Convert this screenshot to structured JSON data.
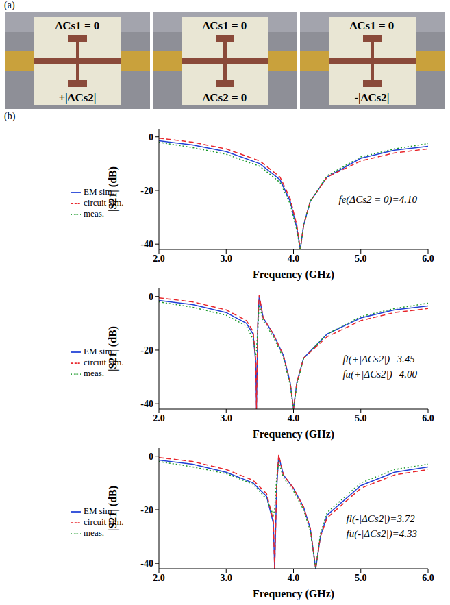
{
  "panel_labels": [
    "(a)",
    "(b)"
  ],
  "photos": [
    {
      "top": "ΔCs1 = 0",
      "bottom": "+|ΔCs2|"
    },
    {
      "top": "ΔCs1 = 0",
      "bottom": "ΔCs2 = 0"
    },
    {
      "top": "ΔCs1 = 0",
      "bottom": "-|ΔCs2|"
    }
  ],
  "chart_data": [
    {
      "type": "line",
      "x_label": "Frequency (GHz)",
      "y_label": "|S21| (dB)",
      "xlim": [
        2,
        6
      ],
      "xticks": [
        {
          "value": 2,
          "label": "2.0"
        },
        {
          "value": 3,
          "label": "3.0"
        },
        {
          "value": 4,
          "label": "4.0"
        },
        {
          "value": 5,
          "label": "5.0"
        },
        {
          "value": 6,
          "label": "6.0"
        }
      ],
      "ylim": [
        -42,
        3
      ],
      "yticks": [
        0,
        -20,
        -40
      ],
      "legend": "left",
      "grid": false,
      "annotations": [
        "fe(ΔCs2 = 0)=4.10"
      ],
      "x": [
        2.0,
        2.5,
        3.0,
        3.5,
        3.8,
        3.95,
        4.05,
        4.1,
        4.15,
        4.25,
        4.5,
        5.0,
        5.5,
        6.0
      ],
      "series": [
        {
          "name": "EM sim.",
          "color": "#1f3fd6",
          "line_style": "solid",
          "values": [
            -1.5,
            -3,
            -5.5,
            -10,
            -16,
            -24,
            -34,
            -42,
            -33,
            -24,
            -15,
            -8,
            -5,
            -3.5
          ]
        },
        {
          "name": "circuit sim.",
          "color": "#e8262b",
          "line_style": "dashed",
          "values": [
            -0.5,
            -2,
            -4.5,
            -9,
            -15,
            -23,
            -33,
            -42,
            -33,
            -24,
            -15,
            -9,
            -6,
            -4.5
          ]
        },
        {
          "name": "meas.",
          "color": "#1a9a2a",
          "line_style": "dotted",
          "values": [
            -2,
            -4,
            -6.5,
            -11,
            -17,
            -25,
            -35,
            -42,
            -33,
            -24,
            -14.5,
            -7.5,
            -4.5,
            -2.5
          ]
        }
      ]
    },
    {
      "type": "line",
      "x_label": "Frequency (GHz)",
      "y_label": "|S21| (dB)",
      "xlim": [
        2,
        6
      ],
      "xticks": [
        {
          "value": 2,
          "label": "2.0"
        },
        {
          "value": 3,
          "label": "3.0"
        },
        {
          "value": 4,
          "label": "4.0"
        },
        {
          "value": 5,
          "label": "5.0"
        },
        {
          "value": 6,
          "label": "6.0"
        }
      ],
      "ylim": [
        -42,
        3
      ],
      "yticks": [
        0,
        -20,
        -40
      ],
      "legend": "left",
      "grid": false,
      "annotations": [
        "fl(+|ΔCs2|)=3.45",
        "fu(+|ΔCs2|)=4.00"
      ],
      "x": [
        2.0,
        2.5,
        3.0,
        3.3,
        3.4,
        3.44,
        3.45,
        3.47,
        3.49,
        3.55,
        3.7,
        3.85,
        3.95,
        4.0,
        4.05,
        4.15,
        4.5,
        5.0,
        5.5,
        6.0
      ],
      "series": [
        {
          "name": "EM sim.",
          "color": "#1f3fd6",
          "line_style": "solid",
          "values": [
            -1.5,
            -3,
            -6,
            -10,
            -14,
            -25,
            -42,
            -10,
            0,
            -8,
            -14,
            -22,
            -32,
            -42,
            -32,
            -23,
            -14,
            -8,
            -5,
            -3.5
          ]
        },
        {
          "name": "circuit sim.",
          "color": "#e8262b",
          "line_style": "dashed",
          "values": [
            -0.5,
            -2,
            -5,
            -9,
            -13,
            -24,
            -42,
            -9,
            0.5,
            -8,
            -14,
            -22,
            -32,
            -42,
            -32,
            -23,
            -15,
            -9,
            -6,
            -4.5
          ]
        },
        {
          "name": "meas.",
          "color": "#1a9a2a",
          "line_style": "dotted",
          "values": [
            -2,
            -4,
            -7,
            -11,
            -16,
            -22,
            -20,
            -12,
            -3,
            -9,
            -15,
            -23,
            -33,
            -42,
            -33,
            -23,
            -14,
            -7.5,
            -4.5,
            -2.5
          ]
        }
      ]
    },
    {
      "type": "line",
      "x_label": "Frequency (GHz)",
      "y_label": "|S21| (dB)",
      "xlim": [
        2,
        6
      ],
      "xticks": [
        {
          "value": 2,
          "label": "2.0"
        },
        {
          "value": 3,
          "label": "3.0"
        },
        {
          "value": 4,
          "label": "4.0"
        },
        {
          "value": 5,
          "label": "5.0"
        },
        {
          "value": 6,
          "label": "6.0"
        }
      ],
      "ylim": [
        -42,
        3
      ],
      "yticks": [
        0,
        -20,
        -40
      ],
      "legend": "left",
      "grid": false,
      "annotations": [
        "fl(-|ΔCs2|)=3.72",
        "fu(-|ΔCs2|)=4.33"
      ],
      "x": [
        2.0,
        2.5,
        3.0,
        3.4,
        3.6,
        3.7,
        3.72,
        3.75,
        3.78,
        3.85,
        4.0,
        4.15,
        4.25,
        4.33,
        4.4,
        4.5,
        5.0,
        5.5,
        6.0
      ],
      "series": [
        {
          "name": "EM sim.",
          "color": "#1f3fd6",
          "line_style": "solid",
          "values": [
            -1.5,
            -3,
            -6,
            -10,
            -15,
            -25,
            -42,
            -12,
            0,
            -7,
            -12,
            -19,
            -27,
            -42,
            -30,
            -22,
            -11,
            -6,
            -4
          ]
        },
        {
          "name": "circuit sim.",
          "color": "#e8262b",
          "line_style": "dashed",
          "values": [
            -0.5,
            -2,
            -5,
            -9,
            -14,
            -24,
            -42,
            -11,
            0.5,
            -7,
            -12,
            -19,
            -27,
            -42,
            -30,
            -23,
            -12,
            -7,
            -5
          ]
        },
        {
          "name": "meas.",
          "color": "#1a9a2a",
          "line_style": "dotted",
          "values": [
            -2,
            -4,
            -6.5,
            -10.5,
            -16,
            -22,
            -20,
            -8,
            -2,
            -8,
            -13,
            -20,
            -28,
            -42,
            -29,
            -21,
            -10,
            -5,
            -3
          ]
        }
      ]
    }
  ]
}
